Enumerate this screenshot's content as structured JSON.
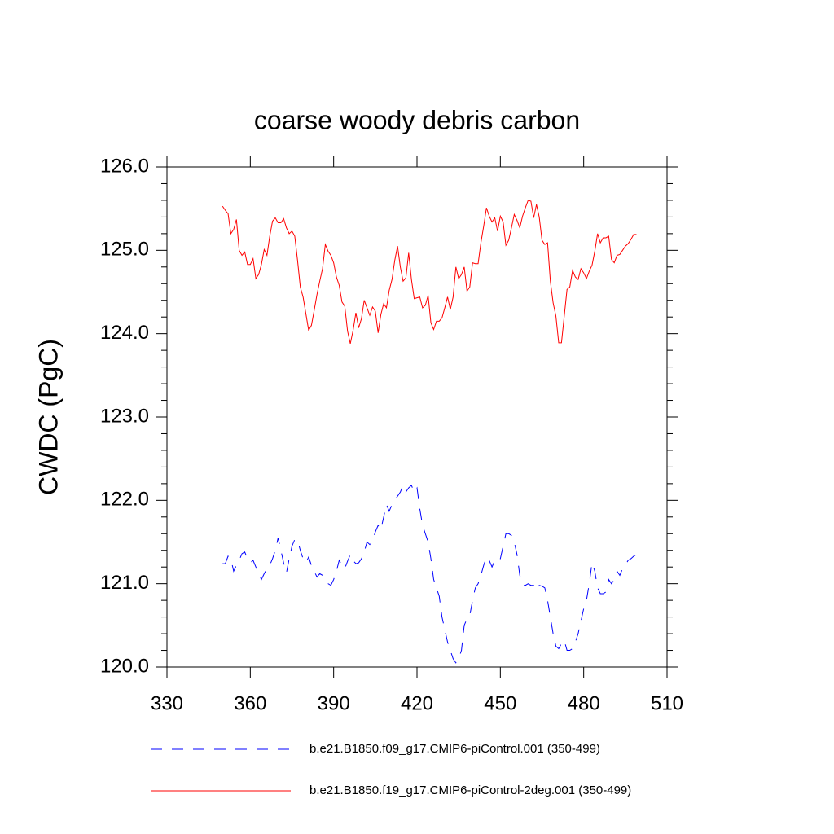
{
  "chart_data": {
    "type": "line",
    "title": "coarse woody debris carbon",
    "y_label": "CWDC  (PgC)",
    "xlim": [
      330,
      510
    ],
    "xticks": [
      330,
      360,
      390,
      420,
      450,
      480,
      510
    ],
    "ylim": [
      120,
      126
    ],
    "yticks": [
      {
        "value": 120,
        "label": "120.0"
      },
      {
        "value": 121,
        "label": "121.0"
      },
      {
        "value": 122,
        "label": "122.0"
      },
      {
        "value": 123,
        "label": "123.0"
      },
      {
        "value": 124,
        "label": "124.0"
      },
      {
        "value": 125,
        "label": "125.0"
      },
      {
        "value": 126,
        "label": "126.0"
      }
    ],
    "y_minor_ticks": [
      120.2,
      120.4,
      120.6,
      120.8,
      121.2,
      121.4,
      121.6,
      121.8,
      122.2,
      122.4,
      122.6,
      122.8,
      123.2,
      123.4,
      123.6,
      123.8,
      124.2,
      124.4,
      124.6,
      124.8,
      125.2,
      125.4,
      125.6,
      125.8
    ],
    "x": [
      350,
      351,
      352,
      353,
      354,
      355,
      356,
      357,
      358,
      359,
      360,
      361,
      362,
      363,
      364,
      365,
      366,
      367,
      368,
      369,
      370,
      371,
      372,
      373,
      374,
      375,
      376,
      377,
      378,
      379,
      380,
      381,
      382,
      383,
      384,
      385,
      386,
      387,
      388,
      389,
      390,
      391,
      392,
      393,
      394,
      395,
      396,
      397,
      398,
      399,
      400,
      401,
      402,
      403,
      404,
      405,
      406,
      407,
      408,
      409,
      410,
      411,
      412,
      413,
      414,
      415,
      416,
      417,
      418,
      419,
      420,
      421,
      422,
      423,
      424,
      425,
      426,
      427,
      428,
      429,
      430,
      431,
      432,
      433,
      434,
      435,
      436,
      437,
      438,
      439,
      440,
      441,
      442,
      443,
      444,
      445,
      446,
      447,
      448,
      449,
      450,
      451,
      452,
      453,
      454,
      455,
      456,
      457,
      458,
      459,
      460,
      461,
      462,
      463,
      464,
      465,
      466,
      467,
      468,
      469,
      470,
      471,
      472,
      473,
      474,
      475,
      476,
      477,
      478,
      479,
      480,
      481,
      482,
      483,
      484,
      485,
      486,
      487,
      488,
      489,
      490,
      491,
      492,
      493,
      494,
      495,
      496,
      497,
      498,
      499
    ],
    "series": [
      {
        "name": "b.e21.B1850.f09_g17.CMIP6-piControl.001 (350-499)",
        "color": "#0000ff",
        "dash": true,
        "values": [
          121.24,
          121.24,
          121.33,
          121.3,
          121.15,
          121.22,
          121.28,
          121.36,
          121.38,
          121.3,
          121.25,
          121.28,
          121.2,
          121.12,
          121.05,
          121.12,
          121.18,
          121.22,
          121.3,
          121.4,
          121.55,
          121.4,
          121.25,
          121.13,
          121.3,
          121.45,
          121.53,
          121.52,
          121.4,
          121.3,
          121.25,
          121.32,
          121.22,
          121.15,
          121.08,
          121.12,
          121.1,
          121.05,
          121.0,
          120.98,
          121.05,
          121.15,
          121.28,
          121.22,
          121.18,
          121.27,
          121.35,
          121.28,
          121.24,
          121.25,
          121.3,
          121.38,
          121.5,
          121.47,
          121.52,
          121.62,
          121.7,
          121.65,
          121.8,
          121.95,
          121.87,
          121.95,
          122.0,
          122.05,
          122.1,
          122.18,
          122.1,
          122.15,
          122.18,
          122.1,
          122.15,
          121.9,
          121.7,
          121.6,
          121.5,
          121.3,
          121.05,
          120.95,
          120.85,
          120.6,
          120.45,
          120.3,
          120.2,
          120.1,
          120.05,
          120.1,
          120.2,
          120.5,
          120.58,
          120.62,
          120.8,
          120.95,
          121.0,
          121.1,
          121.22,
          121.32,
          121.28,
          121.2,
          121.28,
          121.32,
          121.3,
          121.45,
          121.6,
          121.6,
          121.58,
          121.5,
          121.35,
          121.1,
          120.98,
          120.98,
          121.0,
          120.98,
          120.98,
          120.92,
          120.98,
          120.97,
          120.95,
          120.8,
          120.6,
          120.4,
          120.25,
          120.22,
          120.28,
          120.32,
          120.2,
          120.2,
          120.22,
          120.3,
          120.4,
          120.55,
          120.7,
          120.8,
          121.0,
          121.25,
          121.15,
          120.95,
          120.88,
          120.88,
          120.9,
          121.05,
          121.0,
          121.05,
          121.15,
          121.1,
          121.18,
          121.22,
          121.28,
          121.3,
          121.33,
          121.35
        ]
      },
      {
        "name": "b.e21.B1850.f19_g17.CMIP6-piControl-2deg.001 (350-499)",
        "color": "#ff0000",
        "dash": false,
        "values": [
          125.53,
          125.48,
          125.44,
          125.2,
          125.25,
          125.37,
          125.0,
          124.94,
          124.98,
          124.83,
          124.83,
          124.9,
          124.66,
          124.71,
          124.83,
          125.01,
          124.94,
          125.17,
          125.35,
          125.39,
          125.33,
          125.33,
          125.38,
          125.27,
          125.2,
          125.23,
          125.17,
          124.88,
          124.56,
          124.44,
          124.24,
          124.04,
          124.1,
          124.28,
          124.47,
          124.63,
          124.78,
          125.07,
          124.99,
          124.94,
          124.85,
          124.68,
          124.58,
          124.38,
          124.33,
          124.03,
          123.88,
          124.04,
          124.25,
          124.07,
          124.18,
          124.4,
          124.31,
          124.22,
          124.32,
          124.27,
          124.01,
          124.23,
          124.36,
          124.31,
          124.52,
          124.65,
          124.88,
          125.05,
          124.8,
          124.63,
          124.67,
          124.97,
          124.65,
          124.42,
          124.43,
          124.44,
          124.31,
          124.34,
          124.46,
          124.13,
          124.05,
          124.15,
          124.15,
          124.19,
          124.31,
          124.44,
          124.29,
          124.44,
          124.8,
          124.66,
          124.71,
          124.8,
          124.51,
          124.56,
          124.85,
          124.84,
          124.84,
          125.09,
          125.29,
          125.51,
          125.41,
          125.34,
          125.39,
          125.23,
          125.41,
          125.34,
          125.06,
          125.12,
          125.27,
          125.43,
          125.36,
          125.27,
          125.41,
          125.51,
          125.6,
          125.59,
          125.39,
          125.55,
          125.4,
          125.12,
          125.07,
          125.09,
          124.63,
          124.37,
          124.21,
          123.89,
          123.89,
          124.21,
          124.53,
          124.56,
          124.76,
          124.68,
          124.65,
          124.78,
          124.73,
          124.66,
          124.75,
          124.82,
          124.99,
          125.2,
          125.09,
          125.15,
          125.15,
          125.17,
          124.89,
          124.85,
          124.94,
          124.95,
          125.0,
          125.05,
          125.08,
          125.13,
          125.19,
          125.19
        ]
      }
    ]
  }
}
